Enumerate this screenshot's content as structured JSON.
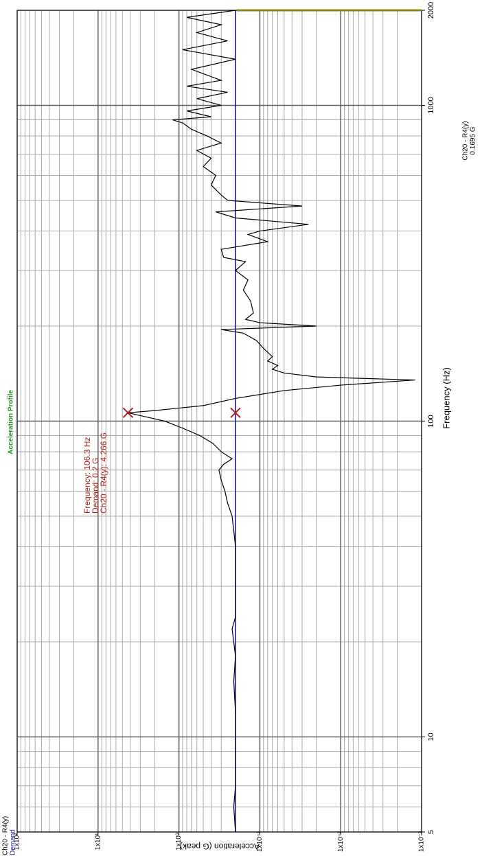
{
  "chart_data": {
    "type": "line",
    "title": "Acceleration Profile",
    "x_label": "Frequency (Hz)",
    "y_label": "Acceleration (G peak)",
    "log_x": true,
    "log_y": true,
    "grid": true,
    "xlim": [
      5,
      2000
    ],
    "ylim": [
      0.001,
      100
    ],
    "xticks": [
      5,
      10,
      100,
      1000,
      2000
    ],
    "yticks": [
      {
        "value": 100,
        "label": "1x10²"
      },
      {
        "value": 10,
        "label": "1x10¹"
      },
      {
        "value": 1,
        "label": "1x10⁰"
      },
      {
        "value": 0.1,
        "label": "1x10⁻¹"
      },
      {
        "value": 0.01,
        "label": "1x10⁻²"
      },
      {
        "value": 0.001,
        "label": "1x10⁻³"
      }
    ],
    "series": [
      {
        "name": "Ch20 - R4(y)",
        "color": "#000000",
        "x": [
          5,
          6,
          7,
          8,
          10,
          12,
          15,
          18,
          20,
          22,
          24,
          28,
          35,
          40,
          45,
          50,
          55,
          60,
          65,
          70,
          73,
          76,
          80,
          85,
          90,
          95,
          100,
          103,
          106.3,
          108,
          112,
          118,
          125,
          130,
          135,
          138,
          142,
          146,
          150,
          155,
          160,
          170,
          180,
          190,
          195,
          200,
          205,
          210,
          220,
          240,
          260,
          280,
          300,
          320,
          330,
          350,
          370,
          390,
          400,
          420,
          440,
          460,
          480,
          500,
          520,
          560,
          600,
          640,
          680,
          720,
          760,
          800,
          840,
          880,
          900,
          920,
          960,
          1000,
          1050,
          1100,
          1150,
          1200,
          1300,
          1400,
          1500,
          1600,
          1700,
          1800,
          1900,
          2000
        ],
        "values": [
          0.2,
          0.21,
          0.2,
          0.2,
          0.2,
          0.2,
          0.21,
          0.2,
          0.21,
          0.22,
          0.2,
          0.2,
          0.2,
          0.2,
          0.21,
          0.22,
          0.25,
          0.27,
          0.3,
          0.32,
          0.28,
          0.22,
          0.3,
          0.38,
          0.55,
          0.9,
          1.5,
          2.5,
          4.266,
          2.0,
          0.5,
          0.2,
          0.05,
          0.01,
          0.0012,
          0.02,
          0.05,
          0.07,
          0.06,
          0.08,
          0.07,
          0.09,
          0.11,
          0.16,
          0.3,
          0.02,
          0.1,
          0.15,
          0.12,
          0.13,
          0.16,
          0.14,
          0.2,
          0.15,
          0.28,
          0.3,
          0.08,
          0.14,
          0.1,
          0.025,
          0.2,
          0.35,
          0.03,
          0.25,
          0.3,
          0.4,
          0.35,
          0.5,
          0.4,
          0.6,
          0.3,
          0.45,
          0.7,
          0.9,
          1.2,
          0.4,
          0.8,
          0.3,
          0.6,
          0.25,
          0.8,
          0.3,
          0.7,
          0.2,
          0.9,
          0.25,
          0.6,
          0.3,
          0.8,
          0.2
        ]
      },
      {
        "name": "Demand",
        "color": "#1c1c8c",
        "x": [
          5,
          2000
        ],
        "values": [
          0.2,
          0.2
        ]
      }
    ],
    "annotations": [
      "Frequency: 106.3 Hz",
      "Demand: 0.2 G",
      "Ch20 - R4(y): 4.266 G"
    ],
    "annotation_color": "#b02020",
    "cursor_readout": {
      "label": "Ch20 - R4(y)",
      "value": "0.1695 G"
    }
  }
}
